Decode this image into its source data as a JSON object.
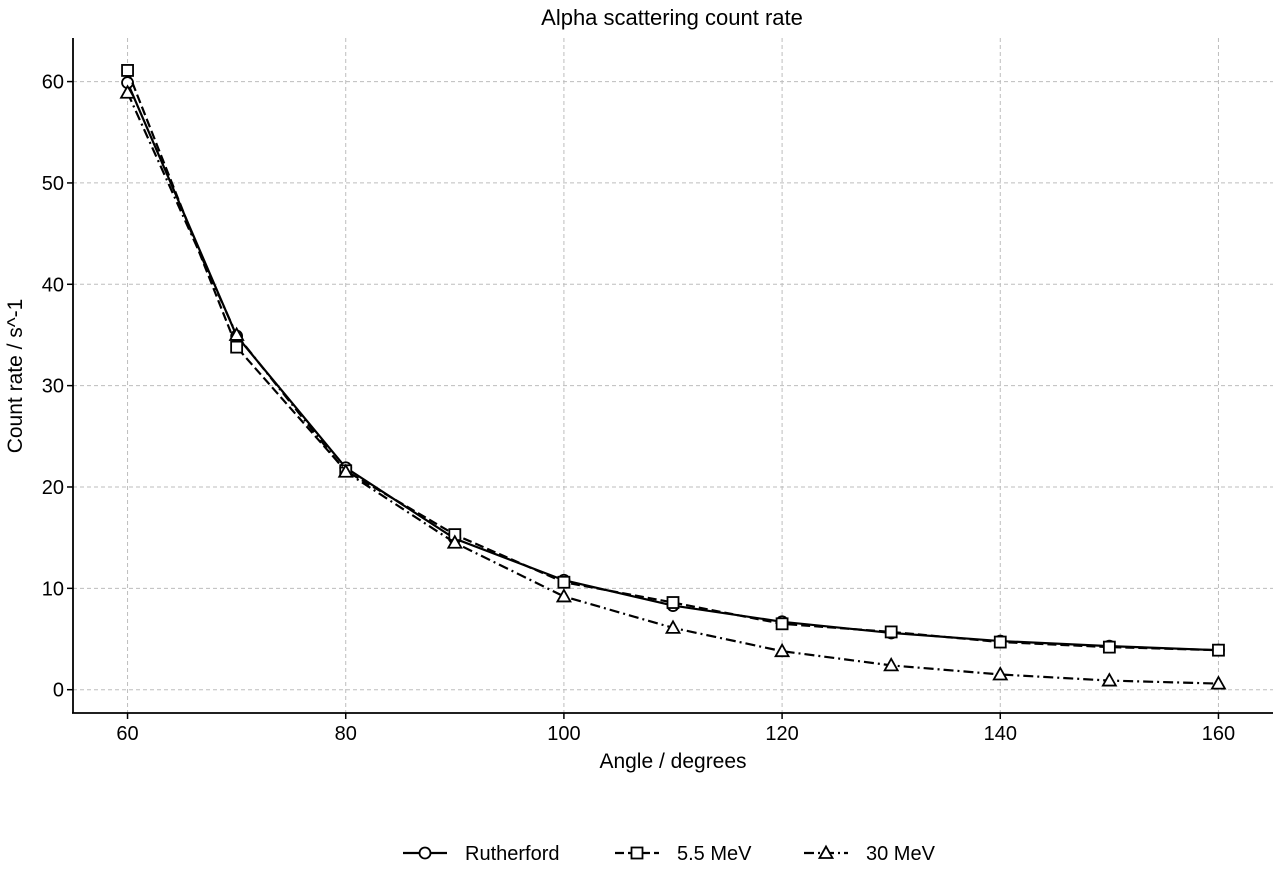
{
  "chart_data": {
    "type": "line",
    "title": "Alpha scattering count rate",
    "xlabel": "Angle / degrees",
    "ylabel": "Count rate / s^-1",
    "xlim": [
      55,
      165
    ],
    "ylim": [
      -2.3,
      64.3
    ],
    "xticks": [
      "60",
      "80",
      "100",
      "120",
      "140",
      "160"
    ],
    "yticks": [
      "0",
      "10",
      "20",
      "30",
      "40",
      "50",
      "60"
    ],
    "grid": true,
    "legend_position": "bottom-center",
    "series": [
      {
        "name": "Rutherford",
        "marker": "circle",
        "line_style": "solid",
        "color": "#000000",
        "x": [
          60,
          70,
          80,
          90,
          100,
          110,
          120,
          130,
          140,
          150,
          160
        ],
        "y": [
          59.9,
          34.9,
          21.9,
          14.9,
          10.8,
          8.3,
          6.7,
          5.6,
          4.8,
          4.3,
          3.9
        ]
      },
      {
        "name": "5.5 MeV",
        "marker": "square",
        "line_style": "dashed",
        "color": "#000000",
        "x": [
          60,
          70,
          80,
          90,
          100,
          110,
          120,
          130,
          140,
          150,
          160
        ],
        "y": [
          61.1,
          33.8,
          21.6,
          15.3,
          10.6,
          8.6,
          6.5,
          5.7,
          4.7,
          4.2,
          3.9
        ]
      },
      {
        "name": "30 MeV",
        "marker": "triangle",
        "line_style": "dashdot",
        "color": "#000000",
        "x": [
          60,
          70,
          80,
          90,
          100,
          110,
          120,
          130,
          140,
          150,
          160
        ],
        "y": [
          58.9,
          35.0,
          21.5,
          14.5,
          9.2,
          6.1,
          3.8,
          2.4,
          1.5,
          0.9,
          0.6
        ]
      }
    ]
  }
}
